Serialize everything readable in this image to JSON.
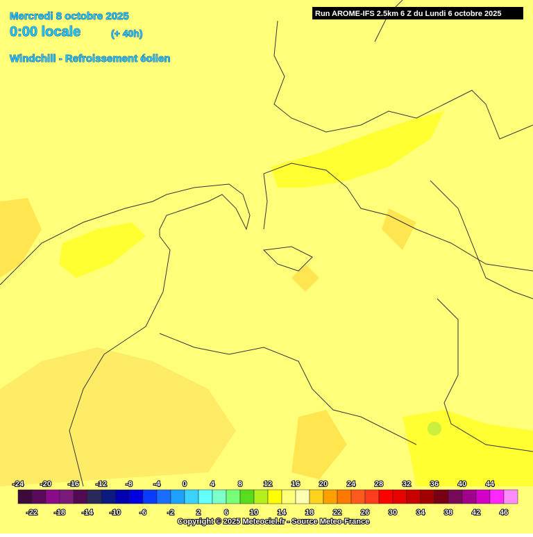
{
  "header": {
    "date": "Mercredi 8 octobre 2025",
    "time": "0:00 locale",
    "lead": "(+ 40h)",
    "parameter": "Windchill - Refroissement éolien",
    "run": "Run AROME-IFS 2.5km 6 Z du Lundi 6 octobre 2025"
  },
  "legend": {
    "values": [
      -24,
      -22,
      -20,
      -18,
      -16,
      -14,
      -12,
      -10,
      -8,
      -6,
      -4,
      -2,
      0,
      2,
      4,
      6,
      8,
      10,
      12,
      14,
      16,
      18,
      20,
      22,
      24,
      26,
      28,
      30,
      32,
      34,
      36,
      38,
      40,
      42,
      44,
      46
    ],
    "colors": [
      "#3c0a3c",
      "#5a0a5a",
      "#8a0a8a",
      "#7a1a7a",
      "#520a52",
      "#2a2a5a",
      "#0a1a80",
      "#0000b0",
      "#0000e0",
      "#0a3cff",
      "#1a6eff",
      "#1ea0ff",
      "#3cd2ff",
      "#64ffff",
      "#7cffc8",
      "#78ff78",
      "#5adc1e",
      "#b4f01e",
      "#ffff00",
      "#ffff78",
      "#ffffb4",
      "#ffd21e",
      "#ffa000",
      "#ff7800",
      "#ff5a1e",
      "#ff3c1e",
      "#ff0000",
      "#e60000",
      "#c80000",
      "#a00000",
      "#780014",
      "#780a5a",
      "#a0008c",
      "#d200c8",
      "#ff28ff",
      "#ff8cff"
    ]
  },
  "footer": {
    "copyright": "Copyright © 2025 Meteociel.fr - Source Meteo-France"
  }
}
